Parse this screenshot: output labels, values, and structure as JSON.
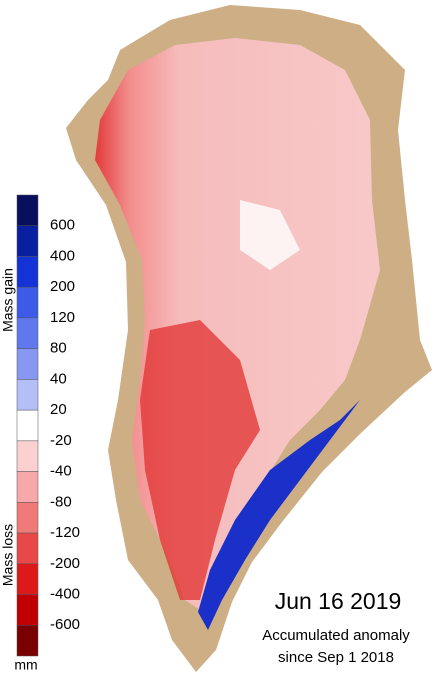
{
  "legend": {
    "ticks": [
      600,
      400,
      200,
      120,
      80,
      40,
      20,
      -20,
      -40,
      -80,
      -120,
      -200,
      -400,
      -600
    ],
    "colors": [
      "#08105e",
      "#0a1fa0",
      "#1433d6",
      "#3b5be8",
      "#5f78ee",
      "#8898f2",
      "#b5bff7",
      "#ffffff",
      "#fbd0d0",
      "#f7a8a8",
      "#f07a7a",
      "#e84848",
      "#dd1a1a",
      "#c00000",
      "#7a0000"
    ],
    "gain_label": "Mass gain",
    "loss_label": "Mass loss",
    "unit": "mm"
  },
  "date": "Jun 16 2019",
  "caption": [
    "Accumulated anomaly",
    "since Sep 1 2018"
  ]
}
